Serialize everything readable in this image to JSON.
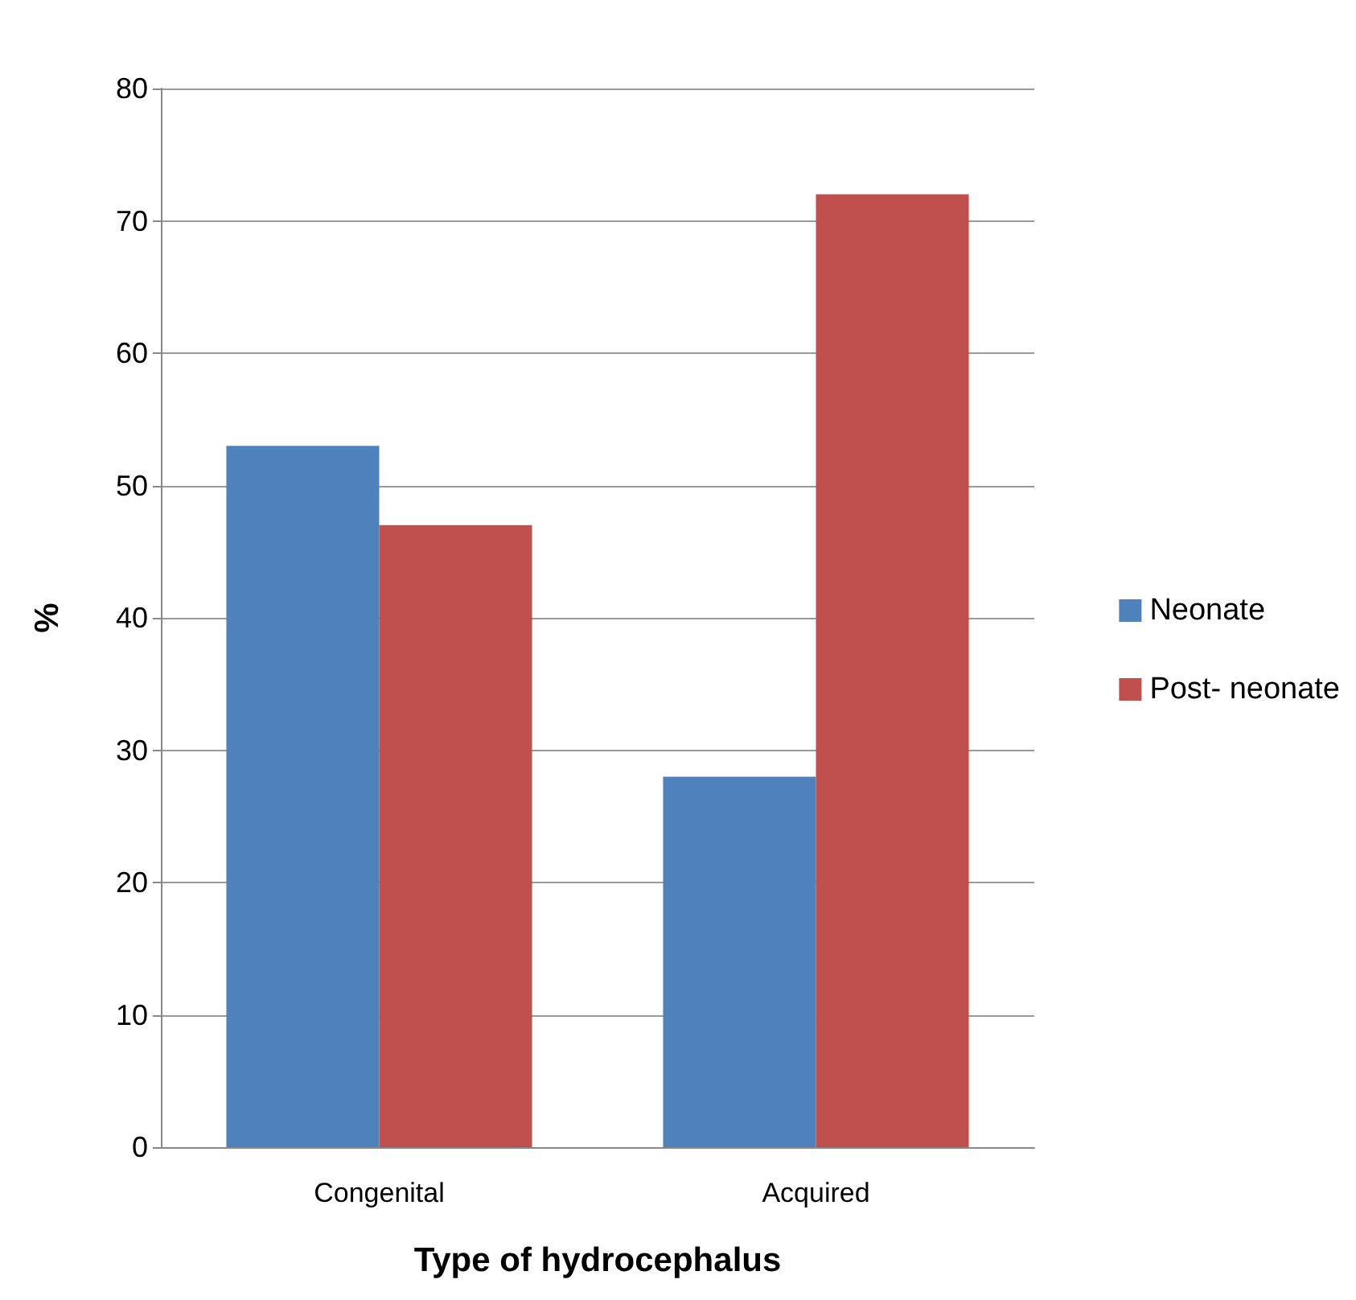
{
  "chart_data": {
    "type": "bar",
    "xlabel": "Type of hydrocephalus",
    "ylabel": "%",
    "categories": [
      "Congenital",
      "Acquired"
    ],
    "series": [
      {
        "name": "Neonate",
        "color": "#4f81bd",
        "values": [
          53,
          28
        ]
      },
      {
        "name": "Post- neonate",
        "color": "#c0504d",
        "values": [
          47,
          72
        ]
      }
    ],
    "ylim": [
      0,
      80
    ],
    "yticks": [
      0,
      10,
      20,
      30,
      40,
      50,
      60,
      70,
      80
    ],
    "grid": "y",
    "legend": "right"
  }
}
